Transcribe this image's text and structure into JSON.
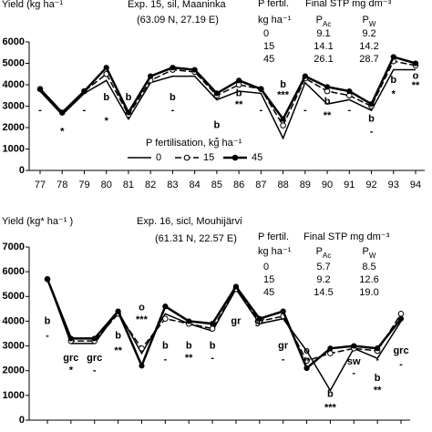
{
  "chart_data": [
    {
      "type": "line",
      "title": "Exp. 15, sil, Maaninka",
      "subtitle": "(63.09 N, 27.19 E)",
      "ylabel": "Yield (kg ha⁻¹",
      "categories": [
        "77",
        "78",
        "79",
        "80",
        "81",
        "82",
        "83",
        "84",
        "85",
        "86",
        "87",
        "88",
        "89",
        "90",
        "91",
        "92",
        "93",
        "94"
      ],
      "ylim": [
        0,
        6000
      ],
      "yticks": [
        0,
        1000,
        2000,
        3000,
        4000,
        5000,
        6000
      ],
      "legend_title": "P fertilisation, kg ha⁻¹",
      "series": [
        {
          "name": "0",
          "color": "#000",
          "dash": false,
          "marker": "none",
          "width": 1.5,
          "values": [
            3700,
            2600,
            3600,
            4200,
            2400,
            4100,
            4400,
            4400,
            3300,
            3700,
            3600,
            1500,
            4100,
            3100,
            3300,
            2800,
            4700,
            4700
          ]
        },
        {
          "name": "15",
          "color": "#000",
          "dash": true,
          "marker": "open",
          "width": 1.5,
          "values": [
            3800,
            2700,
            3700,
            4500,
            2600,
            4200,
            4700,
            4600,
            3500,
            4000,
            3800,
            2100,
            4300,
            3700,
            3500,
            3000,
            5100,
            4900
          ]
        },
        {
          "name": "45",
          "color": "#000",
          "dash": false,
          "marker": "filled",
          "width": 2.5,
          "values": [
            3800,
            2700,
            3700,
            4800,
            2700,
            4400,
            4800,
            4700,
            3600,
            4200,
            3800,
            2400,
            4400,
            3900,
            3700,
            3100,
            5300,
            5000
          ]
        }
      ],
      "annotations": [
        {
          "at": 0,
          "y": 2800,
          "text": "-"
        },
        {
          "at": 1,
          "y": 1800,
          "text": "*"
        },
        {
          "at": 2,
          "y": 2800,
          "text": "-"
        },
        {
          "at": 3,
          "y": 3400,
          "text": "b"
        },
        {
          "at": 3,
          "y": 2300,
          "text": "*"
        },
        {
          "at": 4,
          "y": 3400,
          "text": "b"
        },
        {
          "at": 4,
          "y": 2800,
          "text": "-"
        },
        {
          "at": 6,
          "y": 3400,
          "text": "b"
        },
        {
          "at": 6,
          "y": 2800,
          "text": "-"
        },
        {
          "at": 8,
          "y": 2100,
          "text": "b"
        },
        {
          "at": 8,
          "y": 1500,
          "text": "-"
        },
        {
          "at": 9,
          "y": 3600,
          "text": "b"
        },
        {
          "at": 9,
          "y": 3050,
          "text": "**"
        },
        {
          "at": 10,
          "y": 2800,
          "text": "-"
        },
        {
          "at": 11,
          "y": 4000,
          "text": "b"
        },
        {
          "at": 11,
          "y": 3500,
          "text": "***"
        },
        {
          "at": 12,
          "y": 2800,
          "text": "-"
        },
        {
          "at": 13,
          "y": 3200,
          "text": "b"
        },
        {
          "at": 13,
          "y": 2550,
          "text": "**"
        },
        {
          "at": 14,
          "y": 2800,
          "text": "-"
        },
        {
          "at": 15,
          "y": 2400,
          "text": "b"
        },
        {
          "at": 15,
          "y": 1800,
          "text": "-"
        },
        {
          "at": 16,
          "y": 4200,
          "text": "b"
        },
        {
          "at": 16,
          "y": 3550,
          "text": "*"
        },
        {
          "at": 17,
          "y": 4400,
          "text": "o"
        },
        {
          "at": 17,
          "y": 3950,
          "text": "**"
        }
      ],
      "table": {
        "title_row": [
          "P fertil.",
          "Final STP mg dm⁻³"
        ],
        "header": [
          "kg ha⁻¹",
          {
            "text": "P",
            "sub": "Ac"
          },
          {
            "text": "P",
            "sub": "W"
          }
        ],
        "rows": [
          [
            "0",
            "9.1",
            "9.2"
          ],
          [
            "15",
            "14.1",
            "14.2"
          ],
          [
            "45",
            "26.1",
            "28.7"
          ]
        ]
      }
    },
    {
      "type": "line",
      "title": "Exp. 16, sicl, Mouhijärvi",
      "subtitle": "(61.31 N, 22.57 E)",
      "ylabel": "Yield (kg* ha⁻¹ )",
      "categories": [
        null,
        null,
        null,
        null,
        null,
        null,
        null,
        null,
        null,
        null,
        null,
        null,
        null,
        null,
        null,
        null
      ],
      "ylim": [
        0,
        7000
      ],
      "yticks": [
        0,
        1000,
        2000,
        3000,
        4000,
        5000,
        6000,
        7000
      ],
      "series": [
        {
          "name": "0",
          "color": "#000",
          "dash": false,
          "marker": "none",
          "width": 1.5,
          "values": [
            5700,
            3100,
            3100,
            4400,
            2700,
            4300,
            3900,
            3600,
            5300,
            3900,
            4100,
            2800,
            1200,
            2900,
            2500,
            4000
          ]
        },
        {
          "name": "15",
          "color": "#000",
          "dash": true,
          "marker": "open",
          "width": 1.5,
          "values": [
            5700,
            3200,
            3200,
            4300,
            2900,
            4100,
            3900,
            3700,
            5300,
            4000,
            4200,
            2400,
            2700,
            2900,
            2800,
            4300
          ]
        },
        {
          "name": "45",
          "color": "#000",
          "dash": false,
          "marker": "filled",
          "width": 2.5,
          "values": [
            5700,
            3300,
            3300,
            4400,
            2200,
            4600,
            4000,
            3900,
            5400,
            4100,
            4400,
            2100,
            2900,
            3000,
            2900,
            4100
          ]
        }
      ],
      "annotations": [
        {
          "at": 0,
          "y": 4000,
          "text": "b"
        },
        {
          "at": 0,
          "y": 3400,
          "text": "-"
        },
        {
          "at": 1,
          "y": 2500,
          "text": "grc"
        },
        {
          "at": 1,
          "y": 2000,
          "text": "*"
        },
        {
          "at": 2,
          "y": 2500,
          "text": "grc"
        },
        {
          "at": 2,
          "y": 2000,
          "text": "-"
        },
        {
          "at": 3,
          "y": 3400,
          "text": "b"
        },
        {
          "at": 3,
          "y": 2800,
          "text": "**"
        },
        {
          "at": 4,
          "y": 4550,
          "text": "o"
        },
        {
          "at": 4,
          "y": 4050,
          "text": "***"
        },
        {
          "at": 5,
          "y": 3000,
          "text": "b"
        },
        {
          "at": 5,
          "y": 2450,
          "text": "-"
        },
        {
          "at": 6,
          "y": 3000,
          "text": "b"
        },
        {
          "at": 6,
          "y": 2500,
          "text": "**"
        },
        {
          "at": 7,
          "y": 3000,
          "text": "b"
        },
        {
          "at": 7,
          "y": 2500,
          "text": "-"
        },
        {
          "at": 8,
          "y": 4000,
          "text": "gr"
        },
        {
          "at": 9,
          "y": 4000,
          "text": "gr"
        },
        {
          "at": 10,
          "y": 3000,
          "text": "gr"
        },
        {
          "at": 10,
          "y": 2450,
          "text": "-"
        },
        {
          "at": 11,
          "y": 2800,
          "text": "o"
        },
        {
          "at": 11,
          "y": 2350,
          "text": "**"
        },
        {
          "at": 12,
          "y": 1050,
          "text": "b"
        },
        {
          "at": 12,
          "y": 500,
          "text": "***"
        },
        {
          "at": 13,
          "y": 2350,
          "text": "sw"
        },
        {
          "at": 13,
          "y": 1900,
          "text": "-"
        },
        {
          "at": 14,
          "y": 2900,
          "text": "o"
        },
        {
          "at": 14,
          "y": 2450,
          "text": "-"
        },
        {
          "at": 14,
          "y": 1700,
          "text": "b"
        },
        {
          "at": 14,
          "y": 1200,
          "text": "**"
        },
        {
          "at": 15,
          "y": 2800,
          "text": "grc"
        },
        {
          "at": 15,
          "y": 2250,
          "text": "-"
        }
      ],
      "table": {
        "title_row": [
          "P fertil.",
          "Final STP mg dm⁻³"
        ],
        "header": [
          "kg ha⁻¹",
          {
            "text": "P",
            "sub": "Ac"
          },
          {
            "text": "P",
            "sub": "W"
          }
        ],
        "rows": [
          [
            "0",
            "5.7",
            "8.5"
          ],
          [
            "15",
            "9.2",
            "12.6"
          ],
          [
            "45",
            "14.5",
            "19.0"
          ]
        ]
      }
    }
  ]
}
